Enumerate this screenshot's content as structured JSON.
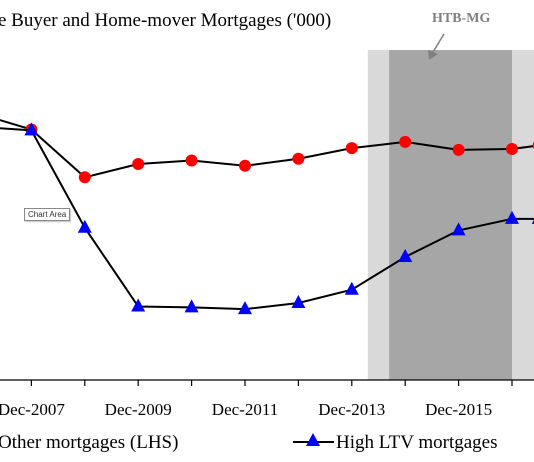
{
  "chart_data": {
    "type": "line",
    "title": "e Buyer and Home-mover Mortgages ('000)",
    "x_tick_labels": [
      "Dec-2007",
      "Dec-2009",
      "Dec-2011",
      "Dec-2013",
      "Dec-2015",
      "De"
    ],
    "series": [
      {
        "name": "Other mortgages (LHS)",
        "marker": "circle",
        "color": "#ff0000",
        "points": [
          {
            "period": 0,
            "value": 105
          },
          {
            "period": 1,
            "value": 87
          },
          {
            "period": 2,
            "value": 33
          },
          {
            "period": 3,
            "value": 48
          },
          {
            "period": 4,
            "value": 52
          },
          {
            "period": 5,
            "value": 46
          },
          {
            "period": 6,
            "value": 54
          },
          {
            "period": 7,
            "value": 66
          },
          {
            "period": 8,
            "value": 73
          },
          {
            "period": 9,
            "value": 64
          },
          {
            "period": 10,
            "value": 65
          },
          {
            "period": 10.5,
            "value": 69
          }
        ]
      },
      {
        "name": "High LTV mortgages",
        "marker": "triangle",
        "color": "#0000ff",
        "points": [
          {
            "period": 0,
            "value": 90
          },
          {
            "period": 1,
            "value": 86
          },
          {
            "period": 2,
            "value": -24
          },
          {
            "period": 3,
            "value": -113
          },
          {
            "period": 4,
            "value": -114
          },
          {
            "period": 5,
            "value": -116
          },
          {
            "period": 6,
            "value": -109
          },
          {
            "period": 7,
            "value": -94
          },
          {
            "period": 8,
            "value": -57
          },
          {
            "period": 9,
            "value": -27
          },
          {
            "period": 10,
            "value": -14
          },
          {
            "period": 10.5,
            "value": -14
          }
        ]
      }
    ],
    "shaded_regions": [
      {
        "start": 7.3,
        "end": 10.8,
        "color": "#d9d9d9"
      },
      {
        "start": 7.7,
        "end": 10.0,
        "color": "#a6a6a6"
      }
    ],
    "annotation": {
      "text": "HTB-MG",
      "color": "#808080"
    },
    "grid": false,
    "legend_position": "bottom"
  },
  "tooltip": {
    "text": "Chart Area"
  }
}
